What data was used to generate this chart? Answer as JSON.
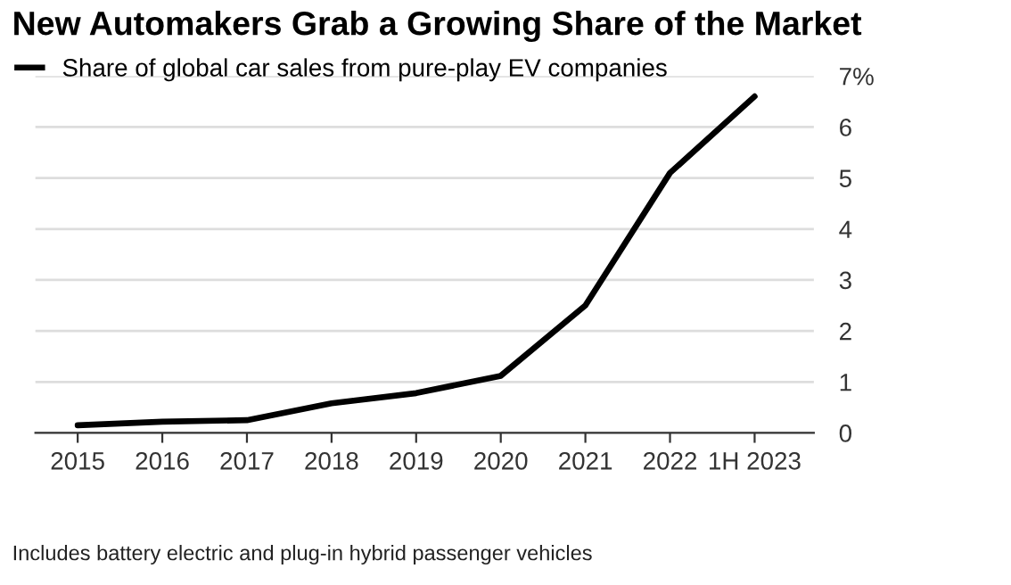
{
  "chart_data": {
    "type": "line",
    "title": "New Automakers Grab a Growing Share of the Market",
    "categories": [
      "2015",
      "2016",
      "2017",
      "2018",
      "2019",
      "2020",
      "2021",
      "2022",
      "1H 2023"
    ],
    "series": [
      {
        "name": "Share of global car sales from pure-play EV companies",
        "color": "#000000",
        "values": [
          0.15,
          0.22,
          0.25,
          0.58,
          0.78,
          1.12,
          2.5,
          5.1,
          6.6
        ]
      }
    ],
    "ylim": [
      0,
      7
    ],
    "yticks": [
      0,
      1,
      2,
      3,
      4,
      5,
      6,
      {
        "value": 7,
        "label": "7%"
      }
    ],
    "grid": "y",
    "legend": "top left",
    "line_style": "solid",
    "marker": "none",
    "annotations": [
      "Includes battery electric and plug-in hybrid passenger vehicles"
    ]
  }
}
